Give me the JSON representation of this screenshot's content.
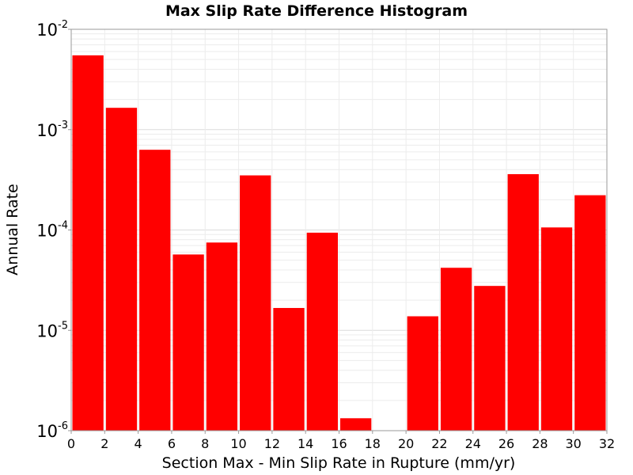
{
  "chart_data": {
    "type": "bar",
    "title": "Max Slip Rate Difference Histogram",
    "xlabel": "Section Max - Min Slip Rate in Rupture (mm/yr)",
    "ylabel": "Annual Rate",
    "xlim": [
      0,
      32
    ],
    "ylim": [
      1e-06,
      0.01
    ],
    "yscale": "log",
    "bin_width": 2,
    "x_ticks": [
      "0",
      "2",
      "4",
      "6",
      "8",
      "10",
      "12",
      "14",
      "16",
      "18",
      "20",
      "22",
      "24",
      "26",
      "28",
      "30",
      "32"
    ],
    "y_ticks": [
      {
        "base": "10",
        "exp": "-6",
        "value": 1e-06
      },
      {
        "base": "10",
        "exp": "-5",
        "value": 1e-05
      },
      {
        "base": "10",
        "exp": "-4",
        "value": 0.0001
      },
      {
        "base": "10",
        "exp": "-3",
        "value": 0.001
      },
      {
        "base": "10",
        "exp": "-2",
        "value": 0.01
      }
    ],
    "bars": [
      {
        "x": 1,
        "value": 0.0055
      },
      {
        "x": 3,
        "value": 0.00165
      },
      {
        "x": 5,
        "value": 0.00063
      },
      {
        "x": 7,
        "value": 5.7e-05
      },
      {
        "x": 9,
        "value": 7.5e-05
      },
      {
        "x": 11,
        "value": 0.00035
      },
      {
        "x": 13,
        "value": 1.67e-05
      },
      {
        "x": 15,
        "value": 9.4e-05
      },
      {
        "x": 17,
        "value": 1.33e-06
      },
      {
        "x": 19,
        "value": 0
      },
      {
        "x": 21,
        "value": 1.38e-05
      },
      {
        "x": 23,
        "value": 4.2e-05
      },
      {
        "x": 25,
        "value": 2.77e-05
      },
      {
        "x": 27,
        "value": 0.00036
      },
      {
        "x": 29,
        "value": 0.000106
      },
      {
        "x": 31,
        "value": 0.000222
      }
    ],
    "bar_color": "#ff0000",
    "grid": true
  }
}
